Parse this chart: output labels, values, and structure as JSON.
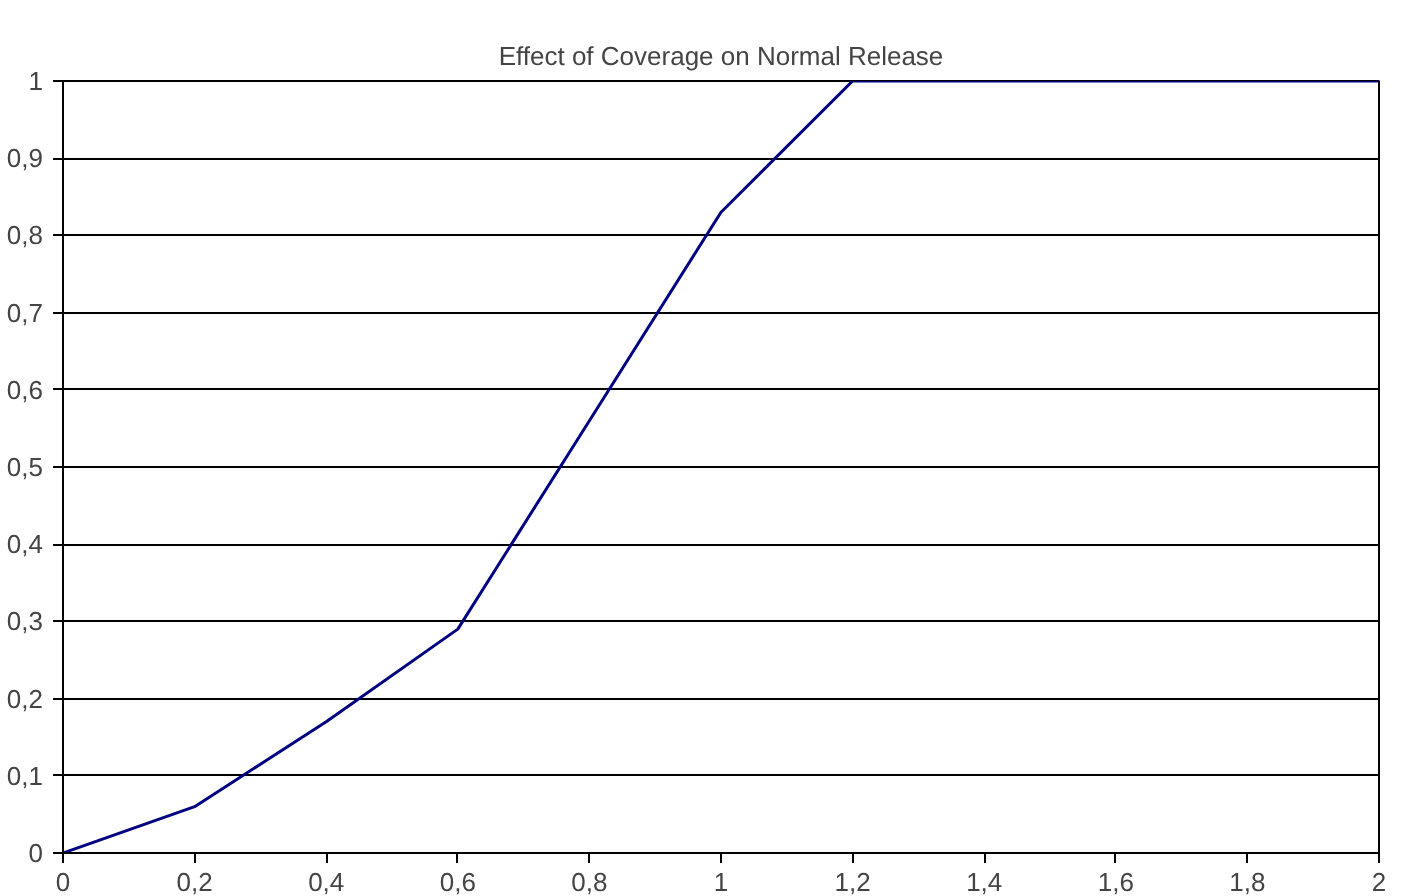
{
  "chart_data": {
    "type": "line",
    "title": "Effect of Coverage on Normal Release",
    "x": [
      0,
      0.2,
      0.4,
      0.6,
      0.8,
      1.0,
      1.2,
      1.4,
      1.6,
      1.8,
      2.0
    ],
    "series": [
      {
        "color": "#000080",
        "values": [
          0,
          0.06,
          0.17,
          0.29,
          0.56,
          0.83,
          1,
          1,
          1,
          1,
          1
        ]
      }
    ],
    "xlim": [
      0,
      2
    ],
    "ylim": [
      0,
      1
    ],
    "xticks": [
      0,
      {
        "value": 0.2,
        "label": "0,2"
      },
      {
        "value": 0.4,
        "label": "0,4"
      },
      {
        "value": 0.6,
        "label": "0,6"
      },
      {
        "value": 0.8,
        "label": "0,8"
      },
      1,
      {
        "value": 1.2,
        "label": "1,2"
      },
      {
        "value": 1.4,
        "label": "1,4"
      },
      {
        "value": 1.6,
        "label": "1,6"
      },
      {
        "value": 1.8,
        "label": "1,8"
      },
      2
    ],
    "yticks": [
      0,
      {
        "value": 0.1,
        "label": "0,1"
      },
      {
        "value": 0.2,
        "label": "0,2"
      },
      {
        "value": 0.3,
        "label": "0,3"
      },
      {
        "value": 0.4,
        "label": "0,4"
      },
      {
        "value": 0.5,
        "label": "0,5"
      },
      {
        "value": 0.6,
        "label": "0,6"
      },
      {
        "value": 0.7,
        "label": "0,7"
      },
      {
        "value": 0.8,
        "label": "0,8"
      },
      {
        "value": 0.9,
        "label": "0,9"
      },
      1
    ],
    "grid": "y",
    "marker": "none",
    "line_style": "solid"
  }
}
